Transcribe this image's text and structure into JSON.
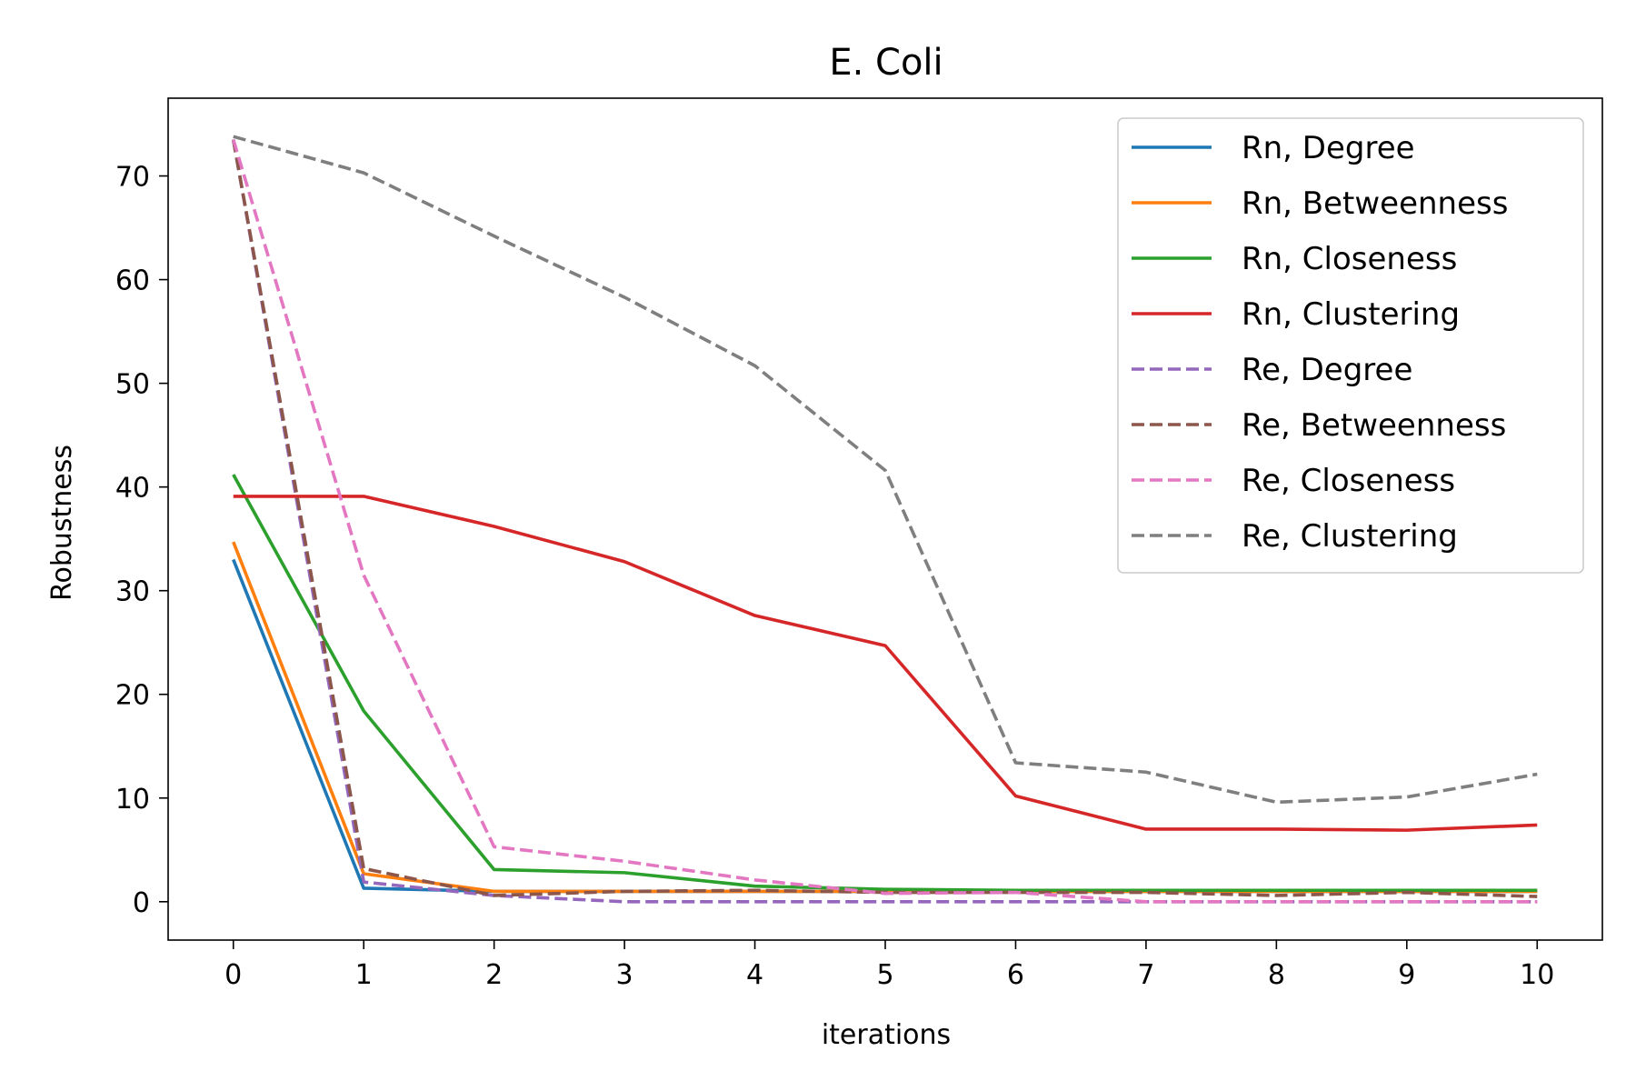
{
  "chart_data": {
    "type": "line",
    "title": "E. Coli",
    "xlabel": "iterations",
    "ylabel": "Robustness",
    "xlim": [
      -0.5,
      10.5
    ],
    "ylim": [
      -3.7,
      77.5
    ],
    "xticks": [
      0,
      1,
      2,
      3,
      4,
      5,
      6,
      7,
      8,
      9,
      10
    ],
    "yticks": [
      0,
      10,
      20,
      30,
      40,
      50,
      60,
      70
    ],
    "grid": false,
    "legend_position": "top-right",
    "x": [
      0,
      1,
      2,
      3,
      4,
      5,
      6,
      7,
      8,
      9,
      10
    ],
    "series": [
      {
        "name": "Rn, Degree",
        "color": "#1f77b4",
        "style": "solid",
        "values": [
          33.0,
          1.3,
          1.0,
          1.0,
          1.0,
          1.0,
          1.0,
          1.0,
          1.0,
          1.0,
          1.0
        ]
      },
      {
        "name": "Rn, Betweenness",
        "color": "#ff7f0e",
        "style": "solid",
        "values": [
          34.7,
          2.7,
          1.0,
          1.0,
          1.0,
          1.0,
          1.0,
          1.0,
          1.0,
          1.0,
          1.0
        ]
      },
      {
        "name": "Rn, Closeness",
        "color": "#2ca02c",
        "style": "solid",
        "values": [
          41.2,
          18.4,
          3.1,
          2.8,
          1.5,
          1.2,
          1.1,
          1.1,
          1.1,
          1.1,
          1.1
        ]
      },
      {
        "name": "Rn, Clustering",
        "color": "#d62728",
        "style": "solid",
        "values": [
          39.1,
          39.1,
          36.2,
          32.8,
          27.6,
          24.7,
          10.2,
          7.0,
          7.0,
          6.9,
          7.4
        ]
      },
      {
        "name": "Re, Degree",
        "color": "#9467bd",
        "style": "dashed",
        "values": [
          73.5,
          1.9,
          0.6,
          0.0,
          0.0,
          0.0,
          0.0,
          0.0,
          0.0,
          0.0,
          0.0
        ]
      },
      {
        "name": "Re, Betweenness",
        "color": "#8c564b",
        "style": "dashed",
        "values": [
          73.5,
          3.2,
          0.6,
          1.0,
          1.1,
          0.9,
          0.9,
          0.9,
          0.6,
          0.9,
          0.5
        ]
      },
      {
        "name": "Re, Closeness",
        "color": "#e377c2",
        "style": "dashed",
        "values": [
          73.5,
          31.5,
          5.3,
          3.9,
          2.1,
          0.8,
          0.9,
          0.0,
          0.0,
          0.0,
          0.0
        ]
      },
      {
        "name": "Re, Clustering",
        "color": "#7f7f7f",
        "style": "dashed",
        "values": [
          73.8,
          70.3,
          64.2,
          58.3,
          51.7,
          41.6,
          13.4,
          12.5,
          9.6,
          10.1,
          12.3
        ]
      }
    ]
  }
}
